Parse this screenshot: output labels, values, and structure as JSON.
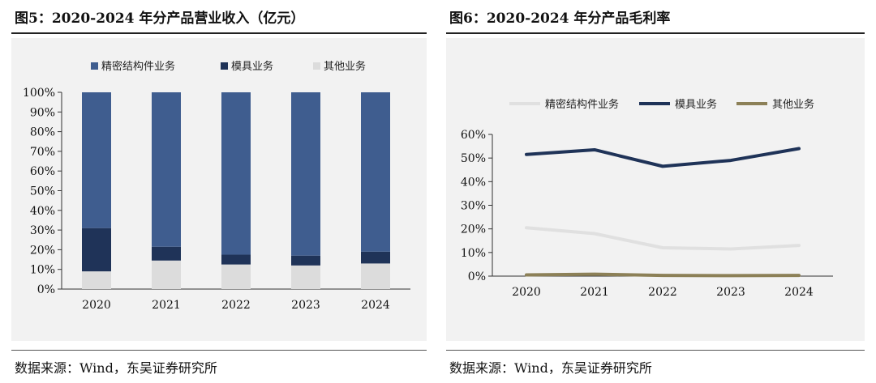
{
  "left_panel": {
    "title": "图5：2020-2024 年分产品营业收入（亿元）",
    "source": "数据来源：Wind，东吴证券研究所"
  },
  "right_panel": {
    "title": "图6：2020-2024 年分产品毛利率",
    "source": "数据来源：Wind，东吴证券研究所"
  },
  "chart_data": [
    {
      "type": "bar",
      "stacked": true,
      "categories": [
        "2020",
        "2021",
        "2022",
        "2023",
        "2024"
      ],
      "y_ticks": [
        "0%",
        "10%",
        "20%",
        "30%",
        "40%",
        "50%",
        "60%",
        "70%",
        "80%",
        "90%",
        "100%"
      ],
      "ylim": [
        0,
        100
      ],
      "legend_position": "top",
      "grid": false,
      "series": [
        {
          "name": "精密结构件业务",
          "color": "#3f5d8f",
          "values": [
            69,
            78.5,
            82.5,
            83,
            81
          ]
        },
        {
          "name": "模具业务",
          "color": "#1f3358",
          "values": [
            22,
            7,
            5,
            5,
            6
          ]
        },
        {
          "name": "其他业务",
          "color": "#dcdcdc",
          "values": [
            9,
            14.5,
            12.5,
            12,
            13
          ]
        }
      ]
    },
    {
      "type": "line",
      "categories": [
        "2020",
        "2021",
        "2022",
        "2023",
        "2024"
      ],
      "y_ticks": [
        "0%",
        "10%",
        "20%",
        "30%",
        "40%",
        "50%",
        "60%"
      ],
      "ylim": [
        0,
        60
      ],
      "legend_position": "top",
      "grid": false,
      "series": [
        {
          "name": "精密结构件业务",
          "color": "#e0e0e0",
          "values": [
            20.5,
            18,
            12,
            11.5,
            13
          ]
        },
        {
          "name": "模具业务",
          "color": "#1f3358",
          "values": [
            51.5,
            53.5,
            46.5,
            49,
            54
          ]
        },
        {
          "name": "其他业务",
          "color": "#8c8057",
          "values": [
            0.5,
            0.8,
            0.3,
            0.2,
            0.3
          ]
        }
      ]
    }
  ]
}
